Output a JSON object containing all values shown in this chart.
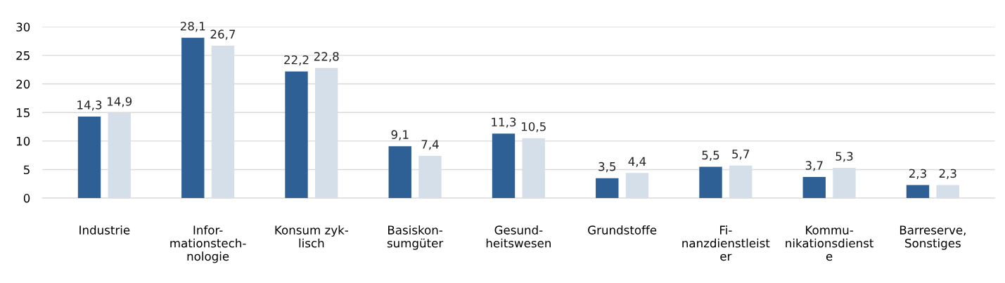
{
  "chart_data": {
    "type": "bar",
    "categories": [
      "Industrie",
      "Infor-\nmationstech-\nnologie",
      "Konsum zyk-\nlisch",
      "Basiskon-\nsumgüter",
      "Gesund-\nheitswesen",
      "Grundstoffe",
      "Fi-\nnanzdienstleist\ner",
      "Kommu-\nnikationsdienst\ne",
      "Barreserve,\nSonstiges"
    ],
    "series": [
      {
        "color": "#2e5f95",
        "values": [
          14.3,
          28.1,
          22.2,
          9.1,
          11.3,
          3.5,
          5.5,
          3.7,
          2.3
        ],
        "value_labels": [
          "14,3",
          "28,1",
          "22,2",
          "9,1",
          "11,3",
          "3,5",
          "5,5",
          "3,7",
          "2,3"
        ]
      },
      {
        "color": "#d5dfe9",
        "values": [
          14.9,
          26.7,
          22.8,
          7.4,
          10.5,
          4.4,
          5.7,
          5.3,
          2.3
        ],
        "value_labels": [
          "14,9",
          "26,7",
          "22,8",
          "7,4",
          "10,5",
          "4,4",
          "5,7",
          "5,3",
          "2,3"
        ]
      }
    ],
    "ylim": [
      0,
      30
    ],
    "yticks": [
      0,
      5,
      10,
      15,
      20,
      25,
      30
    ],
    "grid": "y",
    "legend": false
  }
}
